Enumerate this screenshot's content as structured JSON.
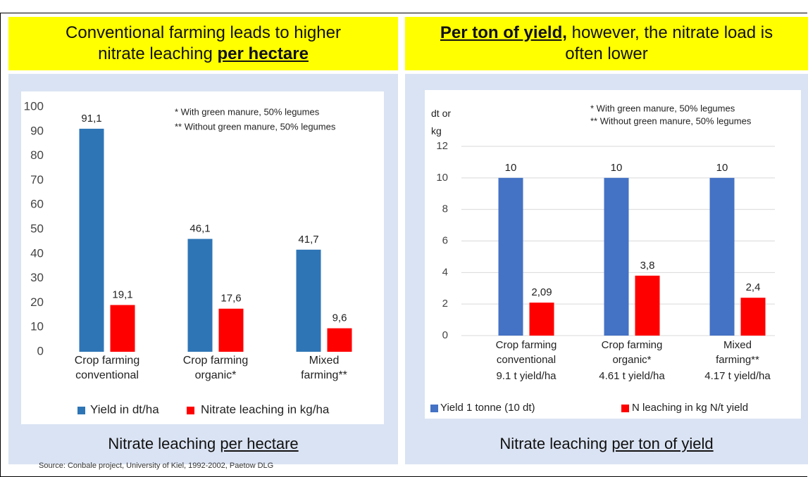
{
  "left_header": {
    "text": "Conventional farming leads to higher nitrate leaching",
    "emphasis": "per hectare"
  },
  "right_header": {
    "emphasis": "Per ton of yield,",
    "text": "however, the nitrate load is often lower"
  },
  "left_caption": {
    "text": "Nitrate leaching",
    "emphasis": "per hectare"
  },
  "right_caption": {
    "text": "Nitrate leaching",
    "emphasis": "per ton of yield"
  },
  "source": "Source: Conbale project, University of Kiel, 1992-2002, Paetow DLG",
  "chart_data": [
    {
      "type": "bar",
      "categories": [
        "Crop farming conventional",
        "Crop farming organic*",
        "Mixed farming**"
      ],
      "series": [
        {
          "name": "Yield in dt/ha",
          "color": "#2e75b6",
          "values": [
            91.1,
            46.1,
            41.7
          ],
          "value_labels": [
            "91,1",
            "46,1",
            "41,7"
          ]
        },
        {
          "name": "Nitrate leaching in kg/ha",
          "color": "#ff0000",
          "values": [
            19.1,
            17.6,
            9.6
          ],
          "value_labels": [
            "19,1",
            "17,6",
            "9,6"
          ]
        }
      ],
      "ylim": [
        0,
        100
      ],
      "yticks": [
        0,
        10,
        20,
        30,
        40,
        50,
        60,
        70,
        80,
        90,
        100
      ],
      "grid": false,
      "notes": [
        "* With green manure, 50% legumes",
        "** Without green manure, 50% legumes"
      ],
      "legend": "bottom"
    },
    {
      "type": "bar",
      "y_label": "dt or kg",
      "categories": [
        "Crop farming conventional",
        "Crop farming organic*",
        "Mixed farming**"
      ],
      "category_sublabels": [
        "9.1 t yield/ha",
        "4.61 t yield/ha",
        "4.17 t yield/ha"
      ],
      "series": [
        {
          "name": "Yield 1 tonne (10 dt)",
          "color": "#4472c4",
          "values": [
            10,
            10,
            10
          ]
        },
        {
          "name": "N leaching in kg N/t yield",
          "color": "#ff0000",
          "values": [
            2.09,
            3.8,
            2.4
          ],
          "value_labels": [
            "2,09",
            "3,8",
            "2,4"
          ]
        }
      ],
      "ylim": [
        0,
        12
      ],
      "yticks": [
        0,
        2,
        4,
        6,
        8,
        10,
        12
      ],
      "grid": true,
      "notes": [
        "* With green manure, 50% legumes",
        "** Without green manure, 50% legumes"
      ],
      "legend": "bottom"
    }
  ]
}
